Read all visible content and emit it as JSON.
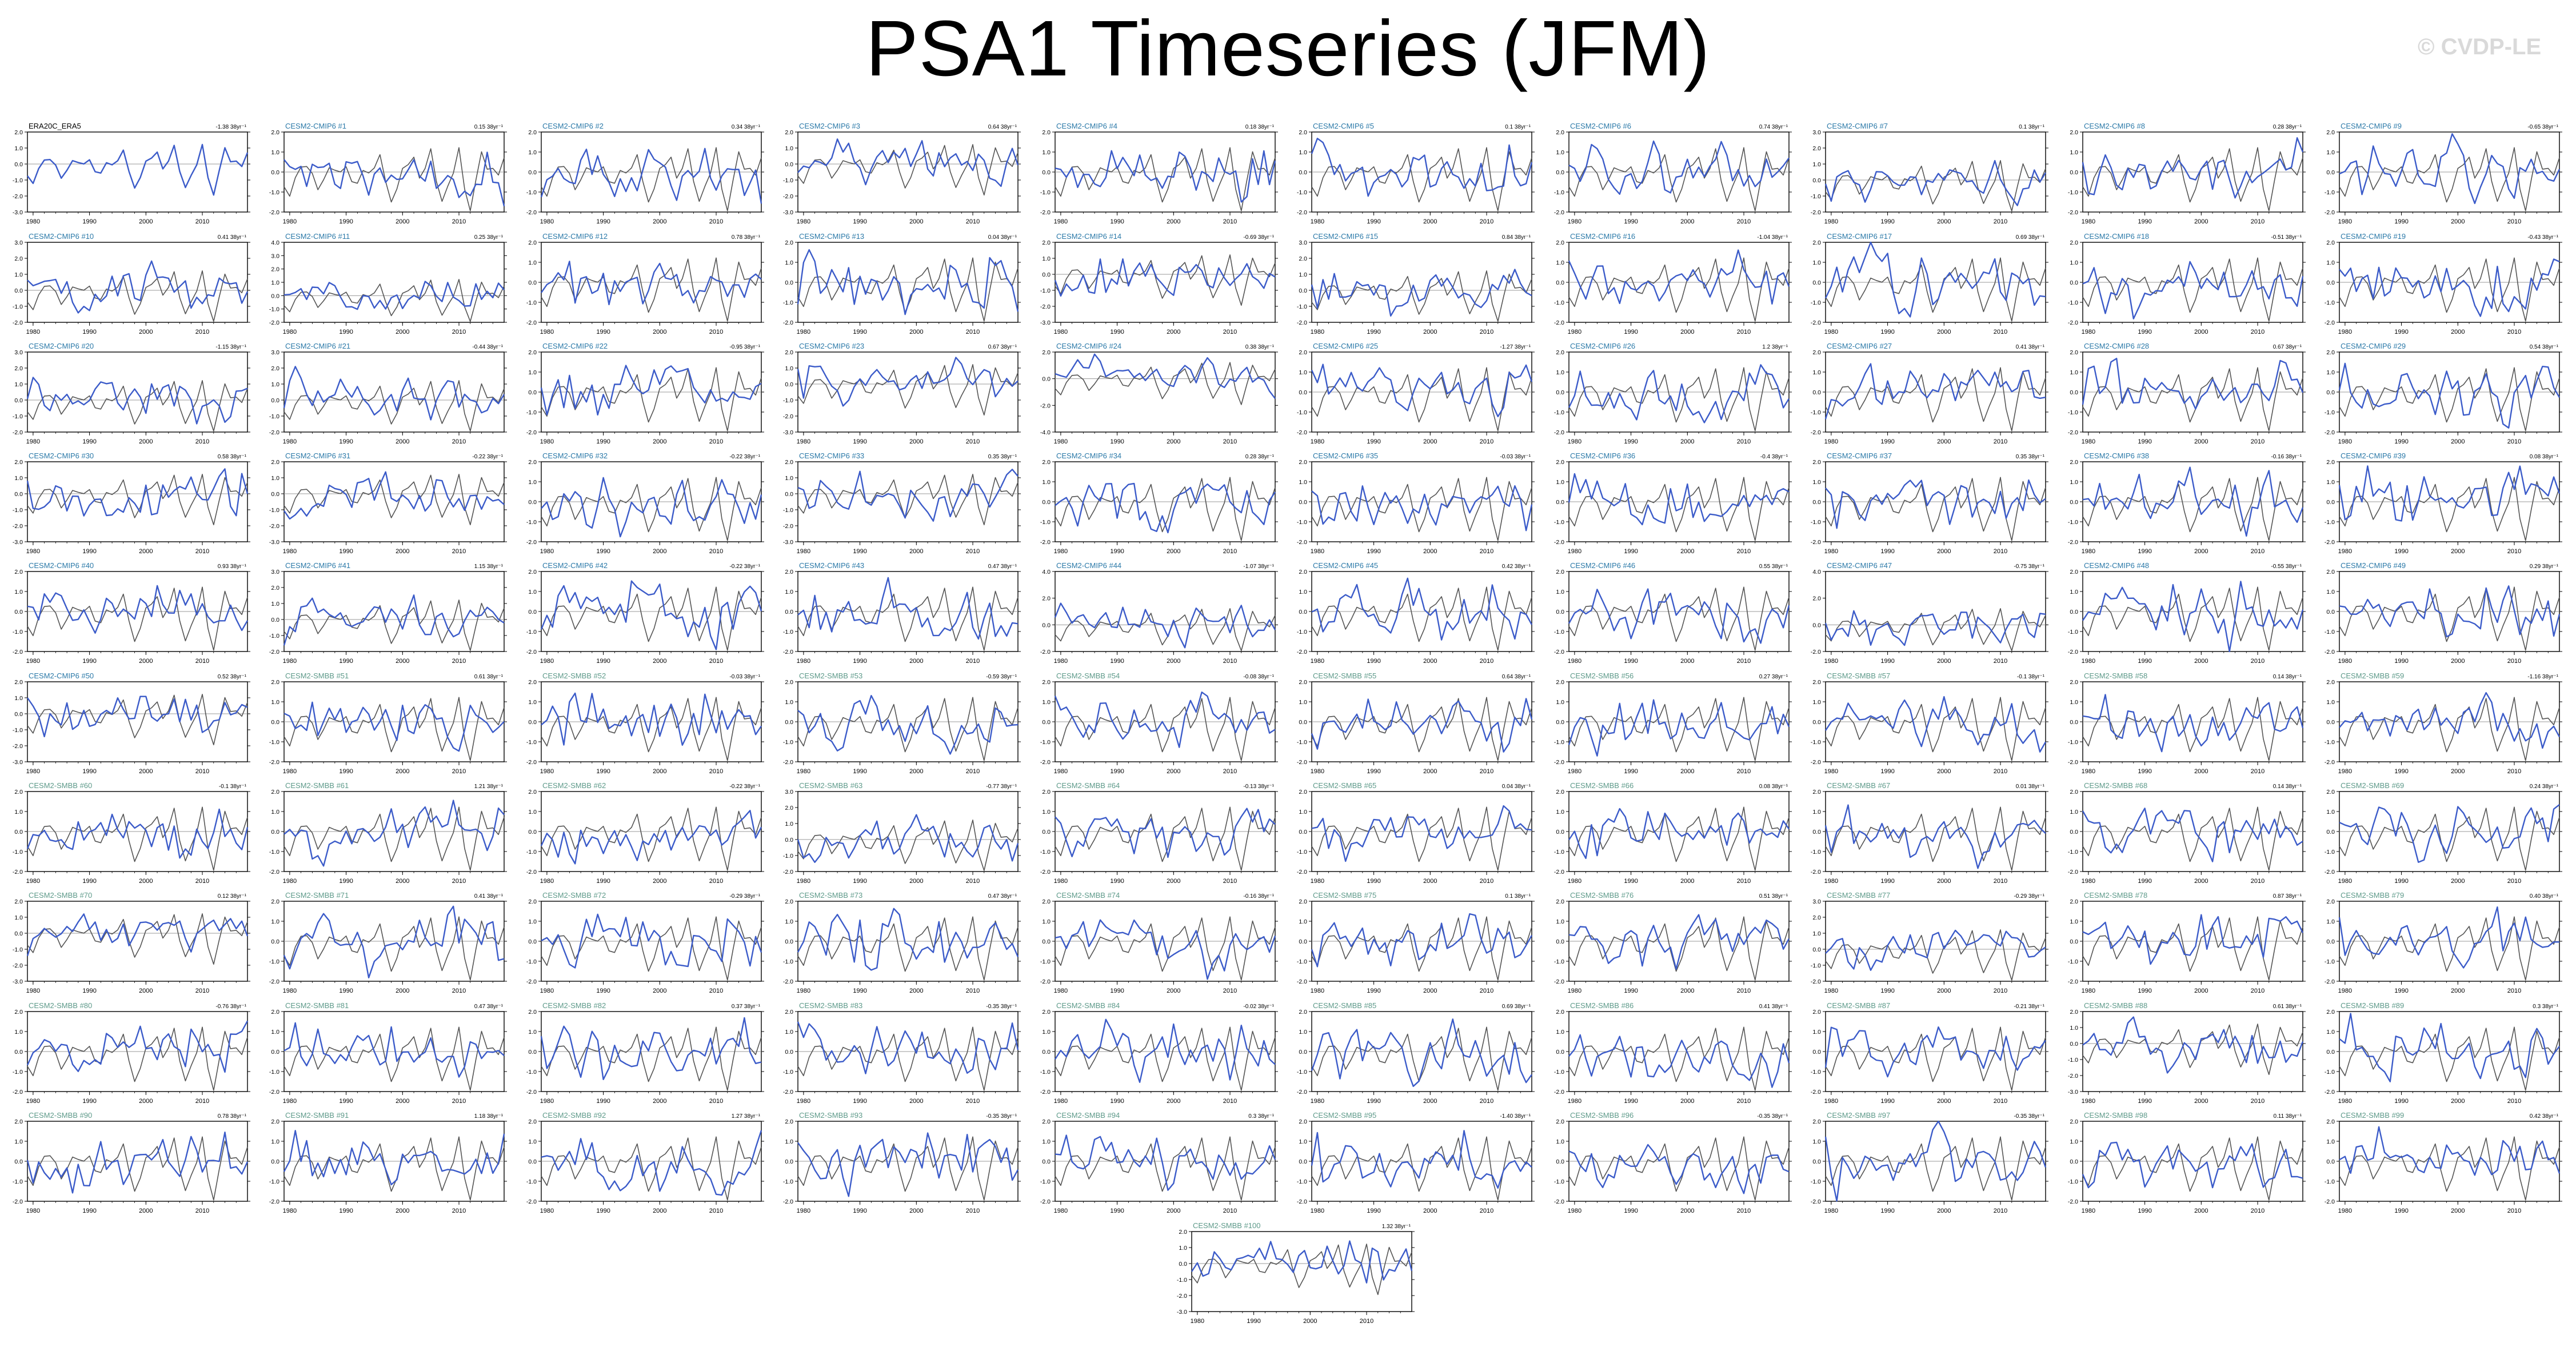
{
  "title": "PSA1 Timeseries (JFM)",
  "watermark": "© CVDP-LE",
  "colors": {
    "model_line": "#3b5bc9",
    "obs_line": "#555555",
    "obs_title": "#000000",
    "cmip6_title": "#2b79a8",
    "smbb_title": "#5e9a8a",
    "zero_line": "#999999"
  },
  "chart_data": {
    "type": "line",
    "x_axis": {
      "range": [
        1979,
        2018
      ],
      "ticks": [
        1980,
        1990,
        2000,
        2010
      ]
    },
    "panels": [
      {
        "label": "ERA20C_ERA5",
        "trend": "-1.38 38yr⁻¹",
        "ymax": 2.0,
        "ymin": -3.0,
        "step": 1.0
      },
      {
        "label": "CESM2-CMIP6 #1",
        "trend": "0.15 38yr⁻¹",
        "ymax": 2.0,
        "ymin": -2.0,
        "step": 1.0
      },
      {
        "label": "CESM2-CMIP6 #2",
        "trend": "0.34 38yr⁻¹",
        "ymax": 2.0,
        "ymin": -2.0,
        "step": 1.0
      },
      {
        "label": "CESM2-CMIP6 #3",
        "trend": "0.64 38yr⁻¹",
        "ymax": 2.0,
        "ymin": -3.0,
        "step": 1.0
      },
      {
        "label": "CESM2-CMIP6 #4",
        "trend": "0.18 38yr⁻¹",
        "ymax": 2.0,
        "ymin": -2.0,
        "step": 1.0
      },
      {
        "label": "CESM2-CMIP6 #5",
        "trend": "0.1 38yr⁻¹",
        "ymax": 2.0,
        "ymin": -2.0,
        "step": 1.0
      },
      {
        "label": "CESM2-CMIP6 #6",
        "trend": "0.74 38yr⁻¹",
        "ymax": 2.0,
        "ymin": -2.0,
        "step": 1.0
      },
      {
        "label": "CESM2-CMIP6 #7",
        "trend": "0.1 38yr⁻¹",
        "ymax": 3.0,
        "ymin": -2.0,
        "step": 1.0
      },
      {
        "label": "CESM2-CMIP6 #8",
        "trend": "0.28 38yr⁻¹",
        "ymax": 2.0,
        "ymin": -2.0,
        "step": 1.0
      },
      {
        "label": "CESM2-CMIP6 #9",
        "trend": "-0.65 38yr⁻¹",
        "ymax": 2.0,
        "ymin": -2.0,
        "step": 1.0
      },
      {
        "label": "CESM2-CMIP6 #10",
        "trend": "0.41 38yr⁻¹",
        "ymax": 3.0,
        "ymin": -2.0,
        "step": 1.0
      },
      {
        "label": "CESM2-CMIP6 #11",
        "trend": "0.25 38yr⁻¹",
        "ymax": 4.0,
        "ymin": -2.0,
        "step": 1.0
      },
      {
        "label": "CESM2-CMIP6 #12",
        "trend": "0.78 38yr⁻¹",
        "ymax": 2.0,
        "ymin": -2.0,
        "step": 1.0
      },
      {
        "label": "CESM2-CMIP6 #13",
        "trend": "0.04 38yr⁻¹",
        "ymax": 2.0,
        "ymin": -2.0,
        "step": 1.0
      },
      {
        "label": "CESM2-CMIP6 #14",
        "trend": "-0.69 38yr⁻¹",
        "ymax": 2.0,
        "ymin": -3.0,
        "step": 1.0
      },
      {
        "label": "CESM2-CMIP6 #15",
        "trend": "0.84 38yr⁻¹",
        "ymax": 3.0,
        "ymin": -2.0,
        "step": 1.0
      },
      {
        "label": "CESM2-CMIP6 #16",
        "trend": "-1.04 38yr⁻¹",
        "ymax": 2.0,
        "ymin": -2.0,
        "step": 1.0
      },
      {
        "label": "CESM2-CMIP6 #17",
        "trend": "0.69 38yr⁻¹",
        "ymax": 2.0,
        "ymin": -2.0,
        "step": 1.0
      },
      {
        "label": "CESM2-CMIP6 #18",
        "trend": "-0.51 38yr⁻¹",
        "ymax": 2.0,
        "ymin": -2.0,
        "step": 1.0
      },
      {
        "label": "CESM2-CMIP6 #19",
        "trend": "-0.43 38yr⁻¹",
        "ymax": 2.0,
        "ymin": -2.0,
        "step": 1.0
      },
      {
        "label": "CESM2-CMIP6 #20",
        "trend": "-1.15 38yr⁻¹",
        "ymax": 3.0,
        "ymin": -2.0,
        "step": 1.0
      },
      {
        "label": "CESM2-CMIP6 #21",
        "trend": "-0.44 38yr⁻¹",
        "ymax": 3.0,
        "ymin": -2.0,
        "step": 1.0
      },
      {
        "label": "CESM2-CMIP6 #22",
        "trend": "-0.95 38yr⁻¹",
        "ymax": 2.0,
        "ymin": -2.0,
        "step": 1.0
      },
      {
        "label": "CESM2-CMIP6 #23",
        "trend": "0.67 38yr⁻¹",
        "ymax": 2.0,
        "ymin": -3.0,
        "step": 1.0
      },
      {
        "label": "CESM2-CMIP6 #24",
        "trend": "0.38 38yr⁻¹",
        "ymax": 2.0,
        "ymin": -4.0,
        "step": 2.0
      },
      {
        "label": "CESM2-CMIP6 #25",
        "trend": "-1.27 38yr⁻¹",
        "ymax": 2.0,
        "ymin": -2.0,
        "step": 1.0
      },
      {
        "label": "CESM2-CMIP6 #26",
        "trend": "1.2 38yr⁻¹",
        "ymax": 2.0,
        "ymin": -2.0,
        "step": 1.0
      },
      {
        "label": "CESM2-CMIP6 #27",
        "trend": "0.41 38yr⁻¹",
        "ymax": 2.0,
        "ymin": -2.0,
        "step": 1.0
      },
      {
        "label": "CESM2-CMIP6 #28",
        "trend": "0.67 38yr⁻¹",
        "ymax": 2.0,
        "ymin": -2.0,
        "step": 1.0
      },
      {
        "label": "CESM2-CMIP6 #29",
        "trend": "0.54 38yr⁻¹",
        "ymax": 2.0,
        "ymin": -2.0,
        "step": 1.0
      },
      {
        "label": "CESM2-CMIP6 #30",
        "trend": "0.58 38yr⁻¹",
        "ymax": 2.0,
        "ymin": -3.0,
        "step": 1.0
      },
      {
        "label": "CESM2-CMIP6 #31",
        "trend": "-0.22 38yr⁻¹",
        "ymax": 2.0,
        "ymin": -3.0,
        "step": 1.0
      },
      {
        "label": "CESM2-CMIP6 #32",
        "trend": "-0.22 38yr⁻¹",
        "ymax": 2.0,
        "ymin": -2.0,
        "step": 1.0
      },
      {
        "label": "CESM2-CMIP6 #33",
        "trend": "0.35 38yr⁻¹",
        "ymax": 2.0,
        "ymin": -3.0,
        "step": 1.0
      },
      {
        "label": "CESM2-CMIP6 #34",
        "trend": "0.28 38yr⁻¹",
        "ymax": 2.0,
        "ymin": -2.0,
        "step": 1.0
      },
      {
        "label": "CESM2-CMIP6 #35",
        "trend": "-0.03 38yr⁻¹",
        "ymax": 2.0,
        "ymin": -2.0,
        "step": 1.0
      },
      {
        "label": "CESM2-CMIP6 #36",
        "trend": "-0.4 38yr⁻¹",
        "ymax": 2.0,
        "ymin": -2.0,
        "step": 1.0
      },
      {
        "label": "CESM2-CMIP6 #37",
        "trend": "0.35 38yr⁻¹",
        "ymax": 2.0,
        "ymin": -2.0,
        "step": 1.0
      },
      {
        "label": "CESM2-CMIP6 #38",
        "trend": "-0.16 38yr⁻¹",
        "ymax": 2.0,
        "ymin": -2.0,
        "step": 1.0
      },
      {
        "label": "CESM2-CMIP6 #39",
        "trend": "0.08 38yr⁻¹",
        "ymax": 2.0,
        "ymin": -2.0,
        "step": 1.0
      },
      {
        "label": "CESM2-CMIP6 #40",
        "trend": "0.93 38yr⁻¹",
        "ymax": 2.0,
        "ymin": -2.0,
        "step": 1.0
      },
      {
        "label": "CESM2-CMIP6 #41",
        "trend": "1.15 38yr⁻¹",
        "ymax": 3.0,
        "ymin": -2.0,
        "step": 1.0
      },
      {
        "label": "CESM2-CMIP6 #42",
        "trend": "-0.22 38yr⁻¹",
        "ymax": 2.0,
        "ymin": -2.0,
        "step": 1.0
      },
      {
        "label": "CESM2-CMIP6 #43",
        "trend": "0.47 38yr⁻¹",
        "ymax": 2.0,
        "ymin": -2.0,
        "step": 1.0
      },
      {
        "label": "CESM2-CMIP6 #44",
        "trend": "-1.07 38yr⁻¹",
        "ymax": 4.0,
        "ymin": -2.0,
        "step": 2.0
      },
      {
        "label": "CESM2-CMIP6 #45",
        "trend": "0.42 38yr⁻¹",
        "ymax": 2.0,
        "ymin": -2.0,
        "step": 1.0
      },
      {
        "label": "CESM2-CMIP6 #46",
        "trend": "0.55 38yr⁻¹",
        "ymax": 2.0,
        "ymin": -2.0,
        "step": 1.0
      },
      {
        "label": "CESM2-CMIP6 #47",
        "trend": "-0.75 38yr⁻¹",
        "ymax": 4.0,
        "ymin": -2.0,
        "step": 2.0
      },
      {
        "label": "CESM2-CMIP6 #48",
        "trend": "-0.55 38yr⁻¹",
        "ymax": 2.0,
        "ymin": -2.0,
        "step": 1.0
      },
      {
        "label": "CESM2-CMIP6 #49",
        "trend": "0.29 38yr⁻¹",
        "ymax": 2.0,
        "ymin": -2.0,
        "step": 1.0
      },
      {
        "label": "CESM2-CMIP6 #50",
        "trend": "0.52 38yr⁻¹",
        "ymax": 2.0,
        "ymin": -3.0,
        "step": 1.0
      },
      {
        "label": "CESM2-SMBB #51",
        "trend": "0.61 38yr⁻¹",
        "ymax": 2.0,
        "ymin": -2.0,
        "step": 1.0
      },
      {
        "label": "CESM2-SMBB #52",
        "trend": "-0.03 38yr⁻¹",
        "ymax": 2.0,
        "ymin": -2.0,
        "step": 1.0
      },
      {
        "label": "CESM2-SMBB #53",
        "trend": "-0.59 38yr⁻¹",
        "ymax": 2.0,
        "ymin": -2.0,
        "step": 1.0
      },
      {
        "label": "CESM2-SMBB #54",
        "trend": "-0.08 38yr⁻¹",
        "ymax": 2.0,
        "ymin": -2.0,
        "step": 1.0
      },
      {
        "label": "CESM2-SMBB #55",
        "trend": "0.64 38yr⁻¹",
        "ymax": 2.0,
        "ymin": -2.0,
        "step": 1.0
      },
      {
        "label": "CESM2-SMBB #56",
        "trend": "0.27 38yr⁻¹",
        "ymax": 2.0,
        "ymin": -2.0,
        "step": 1.0
      },
      {
        "label": "CESM2-SMBB #57",
        "trend": "-0.1 38yr⁻¹",
        "ymax": 2.0,
        "ymin": -2.0,
        "step": 1.0
      },
      {
        "label": "CESM2-SMBB #58",
        "trend": "0.14 38yr⁻¹",
        "ymax": 2.0,
        "ymin": -2.0,
        "step": 1.0
      },
      {
        "label": "CESM2-SMBB #59",
        "trend": "-1.16 38yr⁻¹",
        "ymax": 2.0,
        "ymin": -2.0,
        "step": 1.0
      },
      {
        "label": "CESM2-SMBB #60",
        "trend": "-0.1 38yr⁻¹",
        "ymax": 2.0,
        "ymin": -2.0,
        "step": 1.0
      },
      {
        "label": "CESM2-SMBB #61",
        "trend": "1.21 38yr⁻¹",
        "ymax": 2.0,
        "ymin": -2.0,
        "step": 1.0
      },
      {
        "label": "CESM2-SMBB #62",
        "trend": "-0.22 38yr⁻¹",
        "ymax": 2.0,
        "ymin": -2.0,
        "step": 1.0
      },
      {
        "label": "CESM2-SMBB #63",
        "trend": "-0.77 38yr⁻¹",
        "ymax": 3.0,
        "ymin": -2.0,
        "step": 1.0
      },
      {
        "label": "CESM2-SMBB #64",
        "trend": "-0.13 38yr⁻¹",
        "ymax": 2.0,
        "ymin": -2.0,
        "step": 1.0
      },
      {
        "label": "CESM2-SMBB #65",
        "trend": "0.04 38yr⁻¹",
        "ymax": 2.0,
        "ymin": -2.0,
        "step": 1.0
      },
      {
        "label": "CESM2-SMBB #66",
        "trend": "0.08 38yr⁻¹",
        "ymax": 2.0,
        "ymin": -2.0,
        "step": 1.0
      },
      {
        "label": "CESM2-SMBB #67",
        "trend": "0.01 38yr⁻¹",
        "ymax": 2.0,
        "ymin": -2.0,
        "step": 1.0
      },
      {
        "label": "CESM2-SMBB #68",
        "trend": "0.14 38yr⁻¹",
        "ymax": 2.0,
        "ymin": -2.0,
        "step": 1.0
      },
      {
        "label": "CESM2-SMBB #69",
        "trend": "0.24 38yr⁻¹",
        "ymax": 2.0,
        "ymin": -2.0,
        "step": 1.0
      },
      {
        "label": "CESM2-SMBB #70",
        "trend": "0.12 38yr⁻¹",
        "ymax": 2.0,
        "ymin": -3.0,
        "step": 1.0
      },
      {
        "label": "CESM2-SMBB #71",
        "trend": "0.41 38yr⁻¹",
        "ymax": 2.0,
        "ymin": -2.0,
        "step": 1.0
      },
      {
        "label": "CESM2-SMBB #72",
        "trend": "-0.29 38yr⁻¹",
        "ymax": 2.0,
        "ymin": -2.0,
        "step": 1.0
      },
      {
        "label": "CESM2-SMBB #73",
        "trend": "0.47 38yr⁻¹",
        "ymax": 2.0,
        "ymin": -2.0,
        "step": 1.0
      },
      {
        "label": "CESM2-SMBB #74",
        "trend": "-0.16 38yr⁻¹",
        "ymax": 2.0,
        "ymin": -2.0,
        "step": 1.0
      },
      {
        "label": "CESM2-SMBB #75",
        "trend": "0.1 38yr⁻¹",
        "ymax": 2.0,
        "ymin": -2.0,
        "step": 1.0
      },
      {
        "label": "CESM2-SMBB #76",
        "trend": "0.51 38yr⁻¹",
        "ymax": 2.0,
        "ymin": -2.0,
        "step": 1.0
      },
      {
        "label": "CESM2-SMBB #77",
        "trend": "-0.29 38yr⁻¹",
        "ymax": 3.0,
        "ymin": -2.0,
        "step": 1.0
      },
      {
        "label": "CESM2-SMBB #78",
        "trend": "0.87 38yr⁻¹",
        "ymax": 2.0,
        "ymin": -2.0,
        "step": 1.0
      },
      {
        "label": "CESM2-SMBB #79",
        "trend": "0.40 38yr⁻¹",
        "ymax": 2.0,
        "ymin": -2.0,
        "step": 1.0
      },
      {
        "label": "CESM2-SMBB #80",
        "trend": "-0.76 38yr⁻¹",
        "ymax": 2.0,
        "ymin": -2.0,
        "step": 1.0
      },
      {
        "label": "CESM2-SMBB #81",
        "trend": "0.47 38yr⁻¹",
        "ymax": 2.0,
        "ymin": -2.0,
        "step": 1.0
      },
      {
        "label": "CESM2-SMBB #82",
        "trend": "0.37 38yr⁻¹",
        "ymax": 2.0,
        "ymin": -2.0,
        "step": 1.0
      },
      {
        "label": "CESM2-SMBB #83",
        "trend": "-0.35 38yr⁻¹",
        "ymax": 2.0,
        "ymin": -2.0,
        "step": 1.0
      },
      {
        "label": "CESM2-SMBB #84",
        "trend": "-0.02 38yr⁻¹",
        "ymax": 2.0,
        "ymin": -2.0,
        "step": 1.0
      },
      {
        "label": "CESM2-SMBB #85",
        "trend": "0.69 38yr⁻¹",
        "ymax": 2.0,
        "ymin": -2.0,
        "step": 1.0
      },
      {
        "label": "CESM2-SMBB #86",
        "trend": "0.41 38yr⁻¹",
        "ymax": 2.0,
        "ymin": -2.0,
        "step": 1.0
      },
      {
        "label": "CESM2-SMBB #87",
        "trend": "-0.21 38yr⁻¹",
        "ymax": 2.0,
        "ymin": -2.0,
        "step": 1.0
      },
      {
        "label": "CESM2-SMBB #88",
        "trend": "0.61 38yr⁻¹",
        "ymax": 2.0,
        "ymin": -3.0,
        "step": 1.0
      },
      {
        "label": "CESM2-SMBB #89",
        "trend": "0.3 38yr⁻¹",
        "ymax": 2.0,
        "ymin": -2.0,
        "step": 1.0
      },
      {
        "label": "CESM2-SMBB #90",
        "trend": "0.78 38yr⁻¹",
        "ymax": 2.0,
        "ymin": -2.0,
        "step": 1.0
      },
      {
        "label": "CESM2-SMBB #91",
        "trend": "1.18 38yr⁻¹",
        "ymax": 2.0,
        "ymin": -2.0,
        "step": 1.0
      },
      {
        "label": "CESM2-SMBB #92",
        "trend": "1.27 38yr⁻¹",
        "ymax": 2.0,
        "ymin": -2.0,
        "step": 1.0
      },
      {
        "label": "CESM2-SMBB #93",
        "trend": "-0.35 38yr⁻¹",
        "ymax": 2.0,
        "ymin": -2.0,
        "step": 1.0
      },
      {
        "label": "CESM2-SMBB #94",
        "trend": "0.3 38yr⁻¹",
        "ymax": 2.0,
        "ymin": -2.0,
        "step": 1.0
      },
      {
        "label": "CESM2-SMBB #95",
        "trend": "-1.40 38yr⁻¹",
        "ymax": 2.0,
        "ymin": -2.0,
        "step": 1.0
      },
      {
        "label": "CESM2-SMBB #96",
        "trend": "-0.35 38yr⁻¹",
        "ymax": 2.0,
        "ymin": -2.0,
        "step": 1.0
      },
      {
        "label": "CESM2-SMBB #97",
        "trend": "-0.35 38yr⁻¹",
        "ymax": 2.0,
        "ymin": -2.0,
        "step": 1.0
      },
      {
        "label": "CESM2-SMBB #98",
        "trend": "0.11 38yr⁻¹",
        "ymax": 2.0,
        "ymin": -2.0,
        "step": 1.0
      },
      {
        "label": "CESM2-SMBB #99",
        "trend": "0.42 38yr⁻¹",
        "ymax": 2.0,
        "ymin": -2.0,
        "step": 1.0
      },
      {
        "label": "CESM2-SMBB #100",
        "trend": "1.32 38yr⁻¹",
        "ymax": 2.0,
        "ymin": -3.0,
        "step": 1.0
      }
    ]
  }
}
